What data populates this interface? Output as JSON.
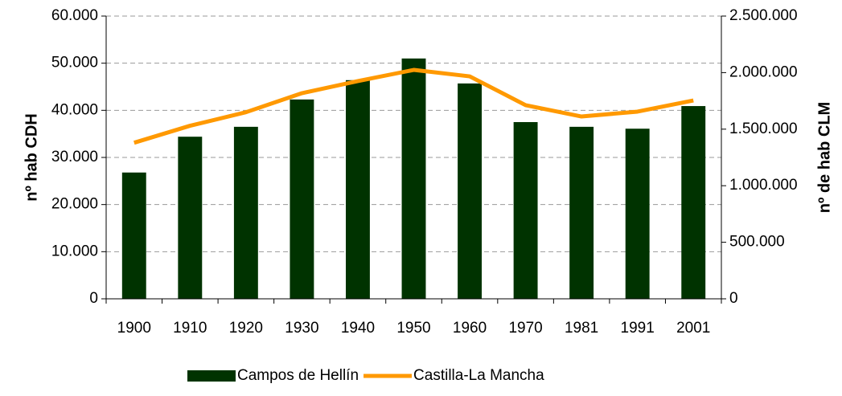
{
  "chart_data": {
    "type": "bar",
    "categories": [
      "1900",
      "1910",
      "1920",
      "1930",
      "1940",
      "1950",
      "1960",
      "1970",
      "1981",
      "1991",
      "2001"
    ],
    "series": [
      {
        "name": "Campos de Hellín",
        "color": "#003300",
        "values": [
          26800,
          34400,
          36500,
          42300,
          46400,
          51000,
          45700,
          37500,
          36500,
          36100,
          40900
        ]
      },
      {
        "name": "Castilla-La Mancha",
        "color": "#ff9900",
        "type": "line",
        "axis": "y2",
        "values": [
          1380000,
          1530000,
          1650000,
          1818000,
          1925000,
          2024000,
          1967000,
          1712000,
          1612000,
          1655000,
          1754000
        ]
      }
    ],
    "ylabel": "nº hab CDH",
    "y2label": "nº de hab CLM",
    "ylim": [
      0,
      60000
    ],
    "yticks": [
      0,
      {
        "value": 10000,
        "label": "10.000"
      },
      {
        "value": 20000,
        "label": "20.000"
      },
      {
        "value": 30000,
        "label": "30.000"
      },
      {
        "value": 40000,
        "label": "40.000"
      },
      {
        "value": 50000,
        "label": "50.000"
      },
      {
        "value": 60000,
        "label": "60.000"
      }
    ],
    "y2lim": [
      0,
      2500000
    ],
    "y2ticks": [
      0,
      {
        "value": 500000,
        "label": "500.000"
      },
      {
        "value": 1000000,
        "label": "1.000.000"
      },
      {
        "value": 1500000,
        "label": "1.500.000"
      },
      {
        "value": 2000000,
        "label": "2.000.000"
      },
      {
        "value": 2500000,
        "label": "2.500.000"
      }
    ],
    "grid": true,
    "legend": "bottom"
  }
}
